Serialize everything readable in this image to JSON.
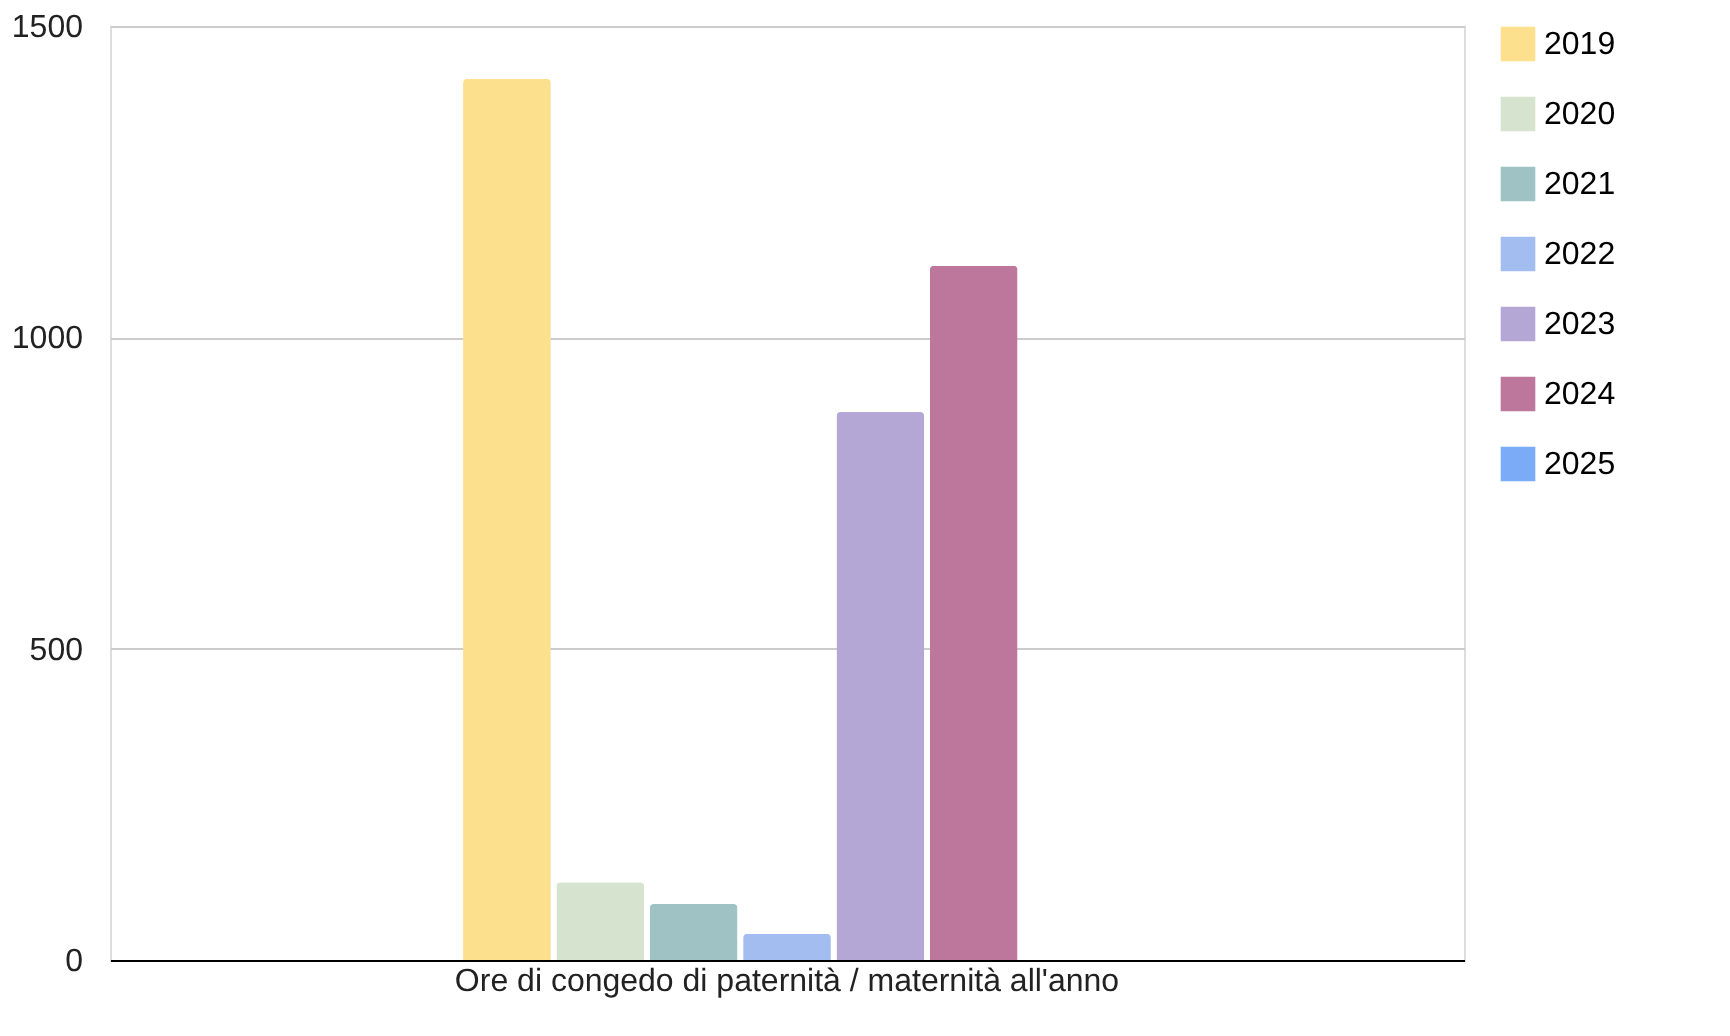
{
  "chart_data": {
    "type": "bar",
    "categories": [
      "Ore di congedo di paternità / maternità all'anno"
    ],
    "series": [
      {
        "name": "2019",
        "color": "#fde08e",
        "values": [
          1415
        ]
      },
      {
        "name": "2020",
        "color": "#d5e3cf",
        "values": [
          125
        ]
      },
      {
        "name": "2021",
        "color": "#9fc3c5",
        "values": [
          90
        ]
      },
      {
        "name": "2022",
        "color": "#a4bdf0",
        "values": [
          42
        ]
      },
      {
        "name": "2023",
        "color": "#b4a7d6",
        "values": [
          880
        ]
      },
      {
        "name": "2024",
        "color": "#be779c",
        "values": [
          1115
        ]
      },
      {
        "name": "2025",
        "color": "#7baaf7",
        "values": [
          null
        ]
      }
    ],
    "ylim": [
      0,
      1500
    ],
    "yticks": [
      0,
      500,
      1000,
      1500
    ],
    "grid": "y",
    "legend": "top right"
  }
}
